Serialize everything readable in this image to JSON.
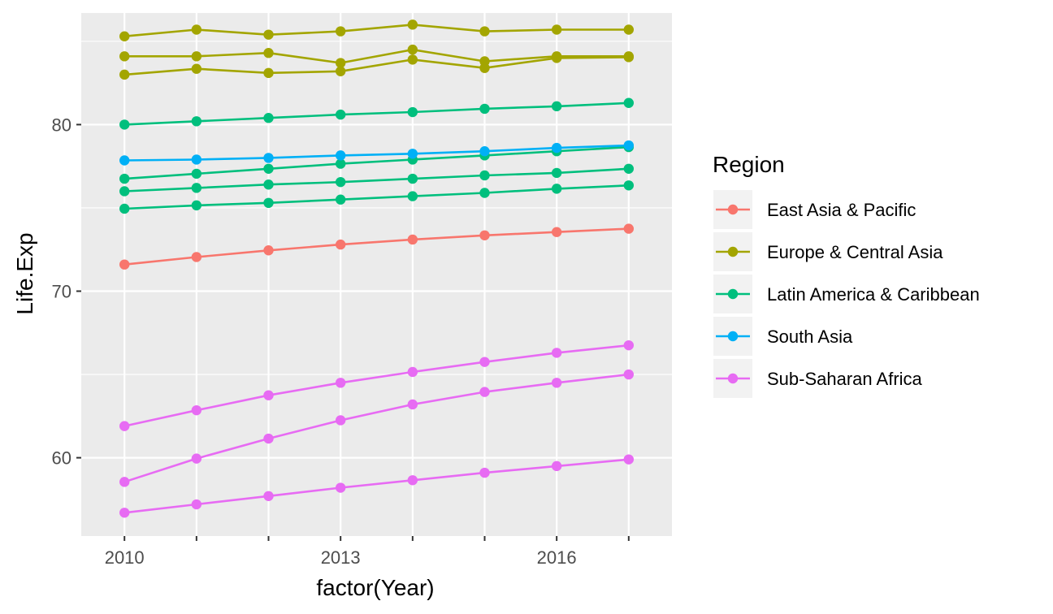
{
  "chart_data": {
    "type": "line",
    "xlabel": "factor(Year)",
    "ylabel": "Life.Exp",
    "x": [
      2010,
      2011,
      2012,
      2013,
      2014,
      2015,
      2016,
      2017
    ],
    "x_ticks": [
      "2010",
      "2013",
      "2016"
    ],
    "y_ticks": [
      "60",
      "70",
      "80"
    ],
    "ylim": [
      55.3,
      86.7
    ],
    "grid": true,
    "legend": {
      "title": "Region",
      "position": "right",
      "entries": [
        {
          "label": "East Asia & Pacific",
          "color": "#F8766D"
        },
        {
          "label": "Europe & Central Asia",
          "color": "#A3A500"
        },
        {
          "label": "Latin America & Caribbean",
          "color": "#00BF7D"
        },
        {
          "label": "South Asia",
          "color": "#00B0F6"
        },
        {
          "label": "Sub-Saharan Africa",
          "color": "#E76BF3"
        }
      ]
    },
    "series": [
      {
        "region": 0,
        "values": [
          71.6,
          72.05,
          72.45,
          72.8,
          73.1,
          73.35,
          73.55,
          73.75
        ]
      },
      {
        "region": 1,
        "values": [
          85.3,
          85.7,
          85.4,
          85.6,
          86.0,
          85.6,
          85.7,
          85.7
        ]
      },
      {
        "region": 1,
        "values": [
          84.1,
          84.1,
          84.3,
          83.7,
          84.5,
          83.8,
          84.1,
          84.1
        ]
      },
      {
        "region": 1,
        "values": [
          83.0,
          83.35,
          83.1,
          83.2,
          83.9,
          83.4,
          84.0,
          84.05
        ]
      },
      {
        "region": 2,
        "values": [
          80.0,
          80.2,
          80.4,
          80.6,
          80.75,
          80.95,
          81.1,
          81.3
        ]
      },
      {
        "region": 2,
        "values": [
          76.75,
          77.05,
          77.35,
          77.65,
          77.9,
          78.15,
          78.4,
          78.65
        ]
      },
      {
        "region": 2,
        "values": [
          76.0,
          76.2,
          76.4,
          76.55,
          76.75,
          76.95,
          77.1,
          77.35
        ]
      },
      {
        "region": 2,
        "values": [
          74.95,
          75.15,
          75.3,
          75.5,
          75.7,
          75.9,
          76.15,
          76.35
        ]
      },
      {
        "region": 3,
        "values": [
          77.85,
          77.9,
          78.0,
          78.15,
          78.25,
          78.4,
          78.6,
          78.75
        ]
      },
      {
        "region": 4,
        "values": [
          61.9,
          62.85,
          63.75,
          64.5,
          65.15,
          65.75,
          66.3,
          66.75
        ]
      },
      {
        "region": 4,
        "values": [
          58.55,
          59.95,
          61.15,
          62.25,
          63.2,
          63.95,
          64.5,
          65.0
        ]
      },
      {
        "region": 4,
        "values": [
          56.7,
          57.2,
          57.7,
          58.2,
          58.65,
          59.1,
          59.5,
          59.9
        ]
      }
    ]
  }
}
